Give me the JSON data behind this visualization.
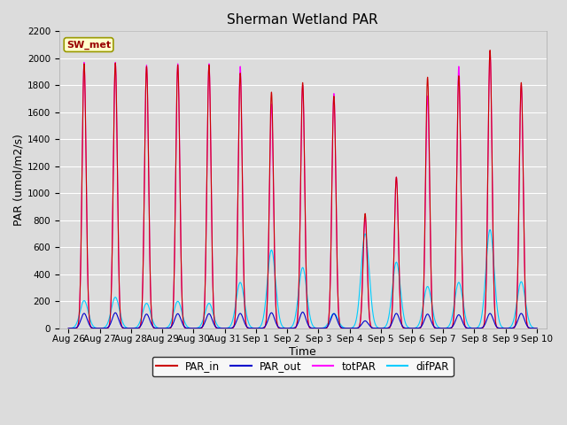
{
  "title": "Sherman Wetland PAR",
  "xlabel": "Time",
  "ylabel": "PAR (umol/m2/s)",
  "ylim": [
    0,
    2200
  ],
  "yticks": [
    0,
    200,
    400,
    600,
    800,
    1000,
    1200,
    1400,
    1600,
    1800,
    2000,
    2200
  ],
  "background_color": "#dcdcdc",
  "plot_bg_color": "#dcdcdc",
  "grid_color": "white",
  "legend_label_box": "SW_met",
  "legend_box_facecolor": "#ffffcc",
  "legend_box_edgecolor": "#999900",
  "legend_box_textcolor": "#990000",
  "series": {
    "PAR_in": {
      "color": "#cc0000",
      "lw": 0.8
    },
    "PAR_out": {
      "color": "#0000cc",
      "lw": 0.8
    },
    "totPAR": {
      "color": "#ff00ff",
      "lw": 0.8
    },
    "difPAR": {
      "color": "#00ccff",
      "lw": 0.8
    }
  },
  "n_days": 15,
  "day_labels": [
    "Aug 26",
    "Aug 27",
    "Aug 28",
    "Aug 29",
    "Aug 30",
    "Aug 31",
    "Sep 1",
    "Sep 2",
    "Sep 3",
    "Sep 4",
    "Sep 5",
    "Sep 6",
    "Sep 7",
    "Sep 8",
    "Sep 9",
    "Sep 10"
  ],
  "PAR_in_peaks": [
    1960,
    1965,
    1940,
    1950,
    1950,
    1890,
    1750,
    1820,
    1720,
    850,
    1120,
    1860,
    1870,
    2060,
    1820
  ],
  "PAR_out_peaks": [
    110,
    115,
    105,
    108,
    108,
    110,
    115,
    120,
    108,
    55,
    110,
    105,
    100,
    110,
    110
  ],
  "totPAR_peaks": [
    1970,
    1970,
    1950,
    1960,
    1960,
    1940,
    1660,
    1800,
    1740,
    820,
    1120,
    1720,
    1940,
    2050,
    1800
  ],
  "difPAR_peaks": [
    205,
    230,
    185,
    200,
    185,
    340,
    580,
    450,
    110,
    700,
    490,
    310,
    340,
    730,
    345
  ],
  "title_fontsize": 11,
  "axis_label_fontsize": 9,
  "tick_fontsize": 7.5
}
